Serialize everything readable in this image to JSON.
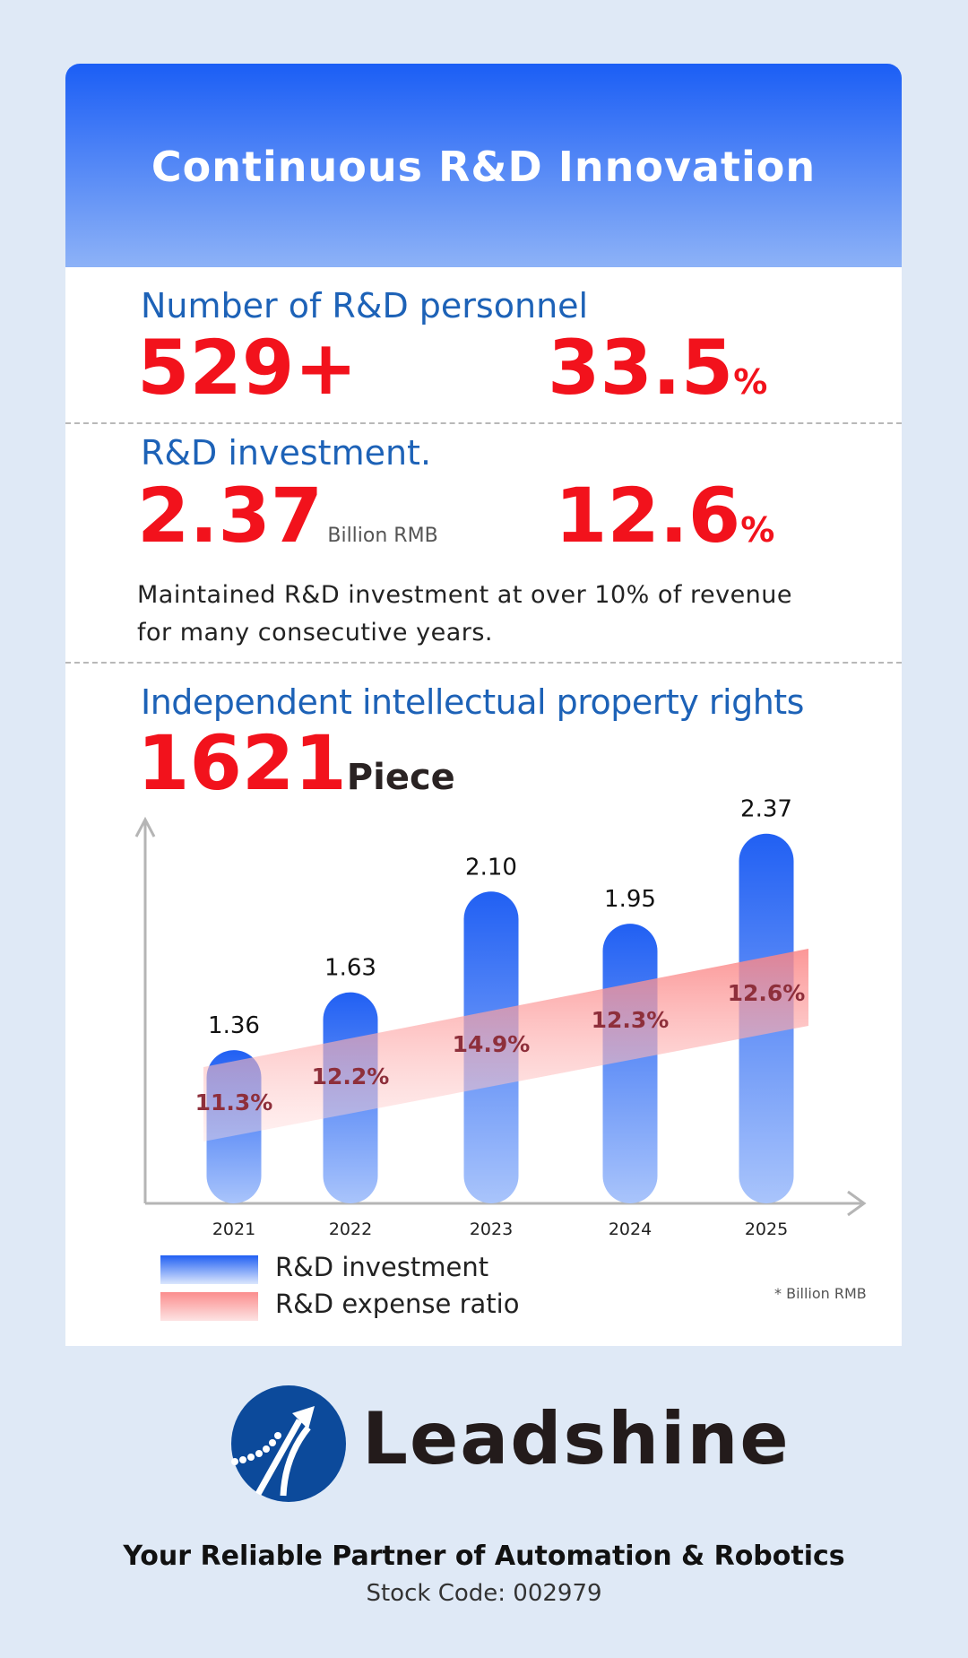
{
  "header": {
    "title": "Continuous R&D Innovation"
  },
  "personnel": {
    "heading": "Number of R&D personnel",
    "count": "529+",
    "ratio": "33.5",
    "ratio_unit": "%"
  },
  "investment": {
    "heading": "R&D investment.",
    "amount": "2.37",
    "amount_unit": "Billion RMB",
    "ratio": "12.6",
    "ratio_unit": "%",
    "note_line1": "Maintained R&D investment at over 10% of revenue",
    "note_line2": "for many consecutive years."
  },
  "ip": {
    "heading": "Independent intellectual property rights",
    "count": "1621",
    "unit": "Piece"
  },
  "chart_data": {
    "type": "bar",
    "categories": [
      "2021",
      "2022",
      "2023",
      "2024",
      "2025"
    ],
    "series": [
      {
        "name": "R&D investment",
        "values": [
          1.36,
          1.63,
          2.1,
          1.95,
          2.37
        ],
        "labels": [
          "1.36",
          "1.63",
          "2.10",
          "1.95",
          "2.37"
        ],
        "color": "#2160f3"
      },
      {
        "name": "R&D expense ratio",
        "values": [
          11.3,
          12.2,
          14.9,
          12.3,
          12.6
        ],
        "labels": [
          "11.3%",
          "12.2%",
          "14.9%",
          "12.3%",
          "12.6%"
        ],
        "color": "#fb8d8d"
      }
    ],
    "unit_note": "* Billion RMB",
    "grid": false,
    "legend": "bottom-left"
  },
  "footer": {
    "brand": "Leadshine",
    "tagline": "Your Reliable Partner of Automation & Robotics",
    "stock": "Stock Code: 002979"
  },
  "colors": {
    "accent_red": "#f2121c",
    "heading_blue": "#1d62b7",
    "background": "#dfe9f6",
    "logo_blue": "#0c4a9b"
  }
}
